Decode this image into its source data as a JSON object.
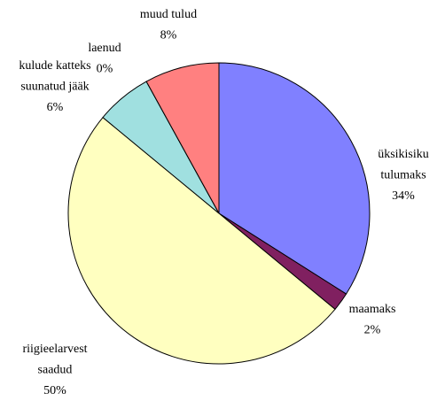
{
  "chart_data": {
    "type": "pie",
    "categories": [
      "üksikisiku tulumaks",
      "maamaks",
      "riigieelarvest saadud",
      "kulude katteks suunatud jääk",
      "laenud",
      "muud tulud"
    ],
    "values": [
      34,
      2,
      50,
      6,
      0,
      8
    ],
    "value_labels": [
      "34%",
      "2%",
      "50%",
      "6%",
      "0%",
      "8%"
    ],
    "colors": [
      "#8080ff",
      "#802060",
      "#ffffc0",
      "#a0e0e0",
      "#000000",
      "#ff8080"
    ]
  }
}
